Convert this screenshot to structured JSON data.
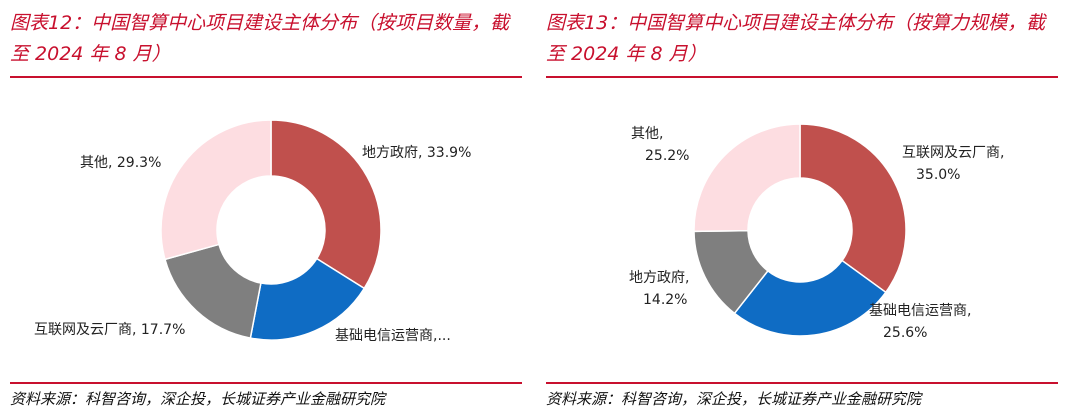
{
  "colors": {
    "accent": "#c8102e",
    "slice_red": "#c0504d",
    "slice_blue": "#0f6cc4",
    "slice_gray": "#7f7f7f",
    "slice_pink": "#fddde1"
  },
  "source_text": "资料来源：科智咨询，深企投，长城证券产业金融研究院",
  "chart_data": [
    {
      "type": "pie",
      "title_line1": "图表12：中国智算中心项目建设主体分布（按项目数量，截",
      "title_line2": "至 2024 年 8 月）",
      "donut": true,
      "categories": [
        "地方政府",
        "基础电信运营商",
        "互联网及云厂商",
        "其他"
      ],
      "values": [
        33.9,
        19.1,
        17.7,
        29.3
      ],
      "labels": [
        "地方政府, 33.9%",
        "基础电信运营商,...",
        "互联网及云厂商, 17.7%",
        "其他, 29.3%"
      ],
      "colors": [
        "#c0504d",
        "#0f6cc4",
        "#7f7f7f",
        "#fddde1"
      ]
    },
    {
      "type": "pie",
      "title_line1": "图表13：中国智算中心项目建设主体分布（按算力规模，截",
      "title_line2": "至 2024 年 8 月）",
      "donut": true,
      "categories": [
        "互联网及云厂商",
        "基础电信运营商",
        "地方政府",
        "其他"
      ],
      "values": [
        35.0,
        25.6,
        14.2,
        25.2
      ],
      "labels": [
        [
          "互联网及云厂商,",
          "35.0%"
        ],
        [
          "基础电信运营商,",
          "25.6%"
        ],
        [
          "地方政府,",
          "14.2%"
        ],
        [
          "其他,",
          "25.2%"
        ]
      ],
      "colors": [
        "#c0504d",
        "#0f6cc4",
        "#7f7f7f",
        "#fddde1"
      ]
    }
  ]
}
